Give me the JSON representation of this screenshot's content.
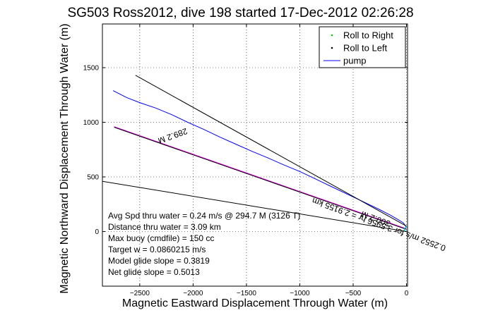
{
  "chart_data": {
    "type": "line",
    "title": "SG503 Ross2012, dive 198 started 17-Dec-2012 02:26:28",
    "xlabel": "Magnetic Eastward Displacement Through Water (m)",
    "ylabel": "Magnetic Northward Displacement Through Water (m)",
    "xlim": [
      -2850,
      10
    ],
    "ylim": [
      -500,
      1900
    ],
    "xticks": [
      -2500,
      -2000,
      -1500,
      -1000,
      -500,
      0
    ],
    "yticks": [
      0,
      500,
      1000,
      1500
    ],
    "xtick_labels": [
      "−2500",
      "−2000",
      "−1500",
      "−1000",
      "−500",
      "0"
    ],
    "ytick_labels": [
      "0",
      "500",
      "1000",
      "1500"
    ],
    "grid": true,
    "legend_position": "top-right",
    "legend": [
      {
        "label": "Roll to Right",
        "color": "#00cc00",
        "marker": "dot"
      },
      {
        "label": "Roll to Left",
        "color": "#000000",
        "marker": "dot"
      },
      {
        "label": "pump",
        "color": "#0000ff",
        "marker": "line"
      }
    ],
    "series": [
      {
        "name": "pump",
        "color": "#0000ff",
        "x": [
          0,
          -30,
          -80,
          -150,
          -250,
          -400,
          -550,
          -700,
          -850,
          -1000,
          -1150,
          -1300,
          -1450,
          -1600,
          -1750,
          -1900,
          -2050,
          -2200,
          -2350,
          -2500,
          -2620,
          -2750
        ],
        "y": [
          40,
          80,
          110,
          150,
          200,
          270,
          340,
          410,
          480,
          550,
          610,
          675,
          735,
          800,
          865,
          935,
          1000,
          1070,
          1130,
          1180,
          1225,
          1290
        ]
      },
      {
        "color": "#ff00ff",
        "x": [
          0,
          -2740
        ],
        "y": [
          25,
          960
        ]
      },
      {
        "color": "#000000",
        "x": [
          0,
          -2540
        ],
        "y": [
          50,
          1430
        ]
      },
      {
        "color": "#000000",
        "x": [
          0,
          -2850
        ],
        "y": [
          0,
          460
        ]
      },
      {
        "color": "#000000",
        "x": [
          0,
          -2740
        ],
        "y": [
          20,
          955
        ]
      }
    ],
    "annotations": [
      {
        "text": "289.2 M",
        "x": -2200,
        "y": 900,
        "angle": 160
      },
      {
        "text": "0.2552 m/s for 3.5956 hr = 2.9155 km",
        "x": -250,
        "y": 90,
        "angle": 200
      },
      {
        "text": "300.2 M",
        "x": -280,
        "y": 140,
        "angle": 200
      }
    ],
    "notes": [
      "Avg Spd thru water =  0.24 m/s @ 294.7   M (3126 T)",
      "Distance thru water = 3.09 km",
      "Max buoy (cmdfile) = 150 cc",
      "Target w = 0.0860215 m/s",
      "Model glide slope = 0.3819",
      "Net glide slope = 0.5013"
    ]
  }
}
